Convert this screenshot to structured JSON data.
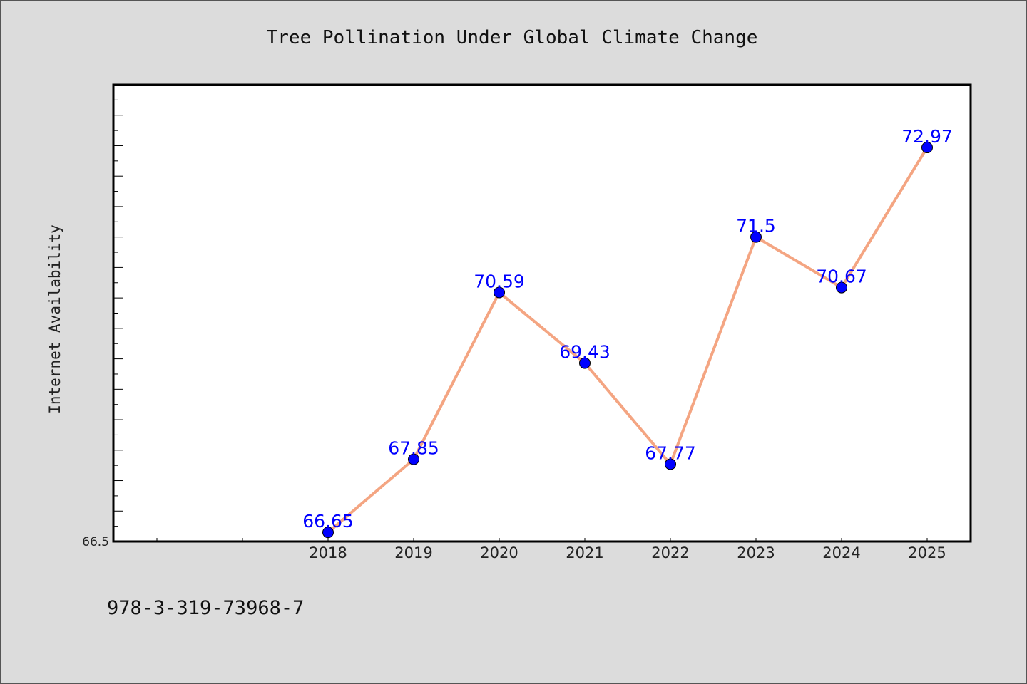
{
  "chart_data": {
    "type": "line",
    "title": "Tree Pollination Under Global Climate Change",
    "xlabel": "",
    "ylabel": "Internet Availability",
    "categories": [
      "2018",
      "2019",
      "2020",
      "2021",
      "2022",
      "2023",
      "2024",
      "2025"
    ],
    "values": [
      66.65,
      67.85,
      70.59,
      69.43,
      67.77,
      71.5,
      70.67,
      72.97
    ],
    "data_labels": [
      "66.65",
      "67.85",
      "70.59",
      "69.43",
      "67.77",
      "71.5",
      "70.67",
      "72.97"
    ],
    "ylim": [
      66.5,
      74.0
    ],
    "y_tick_labels": [
      "66.5"
    ],
    "grid": false,
    "legend": "none",
    "colors": {
      "line": "#f4a582",
      "marker": "#0000ff",
      "data_label": "#0000ff",
      "plot_background": "#ffffff",
      "figure_background": "#dcdcdc"
    }
  },
  "footnote": "978-3-319-73968-7"
}
